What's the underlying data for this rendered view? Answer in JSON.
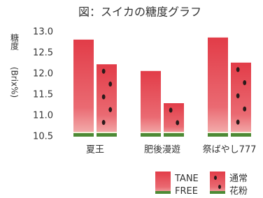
{
  "chart_data": {
    "type": "bar",
    "title": "図：スイカの糖度グラフ",
    "y_label_top": "糖度",
    "y_label": "(Brix%)",
    "categories": [
      "夏王",
      "肥後漫遊",
      "祭ばやし777"
    ],
    "series": [
      {
        "name": "TANE FREE",
        "color": "#e0464f",
        "values": [
          12.82,
          12.07,
          12.87
        ]
      },
      {
        "name": "通常 花粉",
        "color": "#e0464f",
        "values": [
          12.23,
          11.3,
          12.27
        ]
      }
    ],
    "ylim": [
      10.5,
      13.0
    ],
    "yticks": [
      10.5,
      {
        "value": 11,
        "label": "11.0"
      },
      11.5,
      {
        "value": 12,
        "label": "12.0"
      },
      12.5,
      {
        "value": 13,
        "label": "13.0"
      }
    ],
    "grid": false
  }
}
